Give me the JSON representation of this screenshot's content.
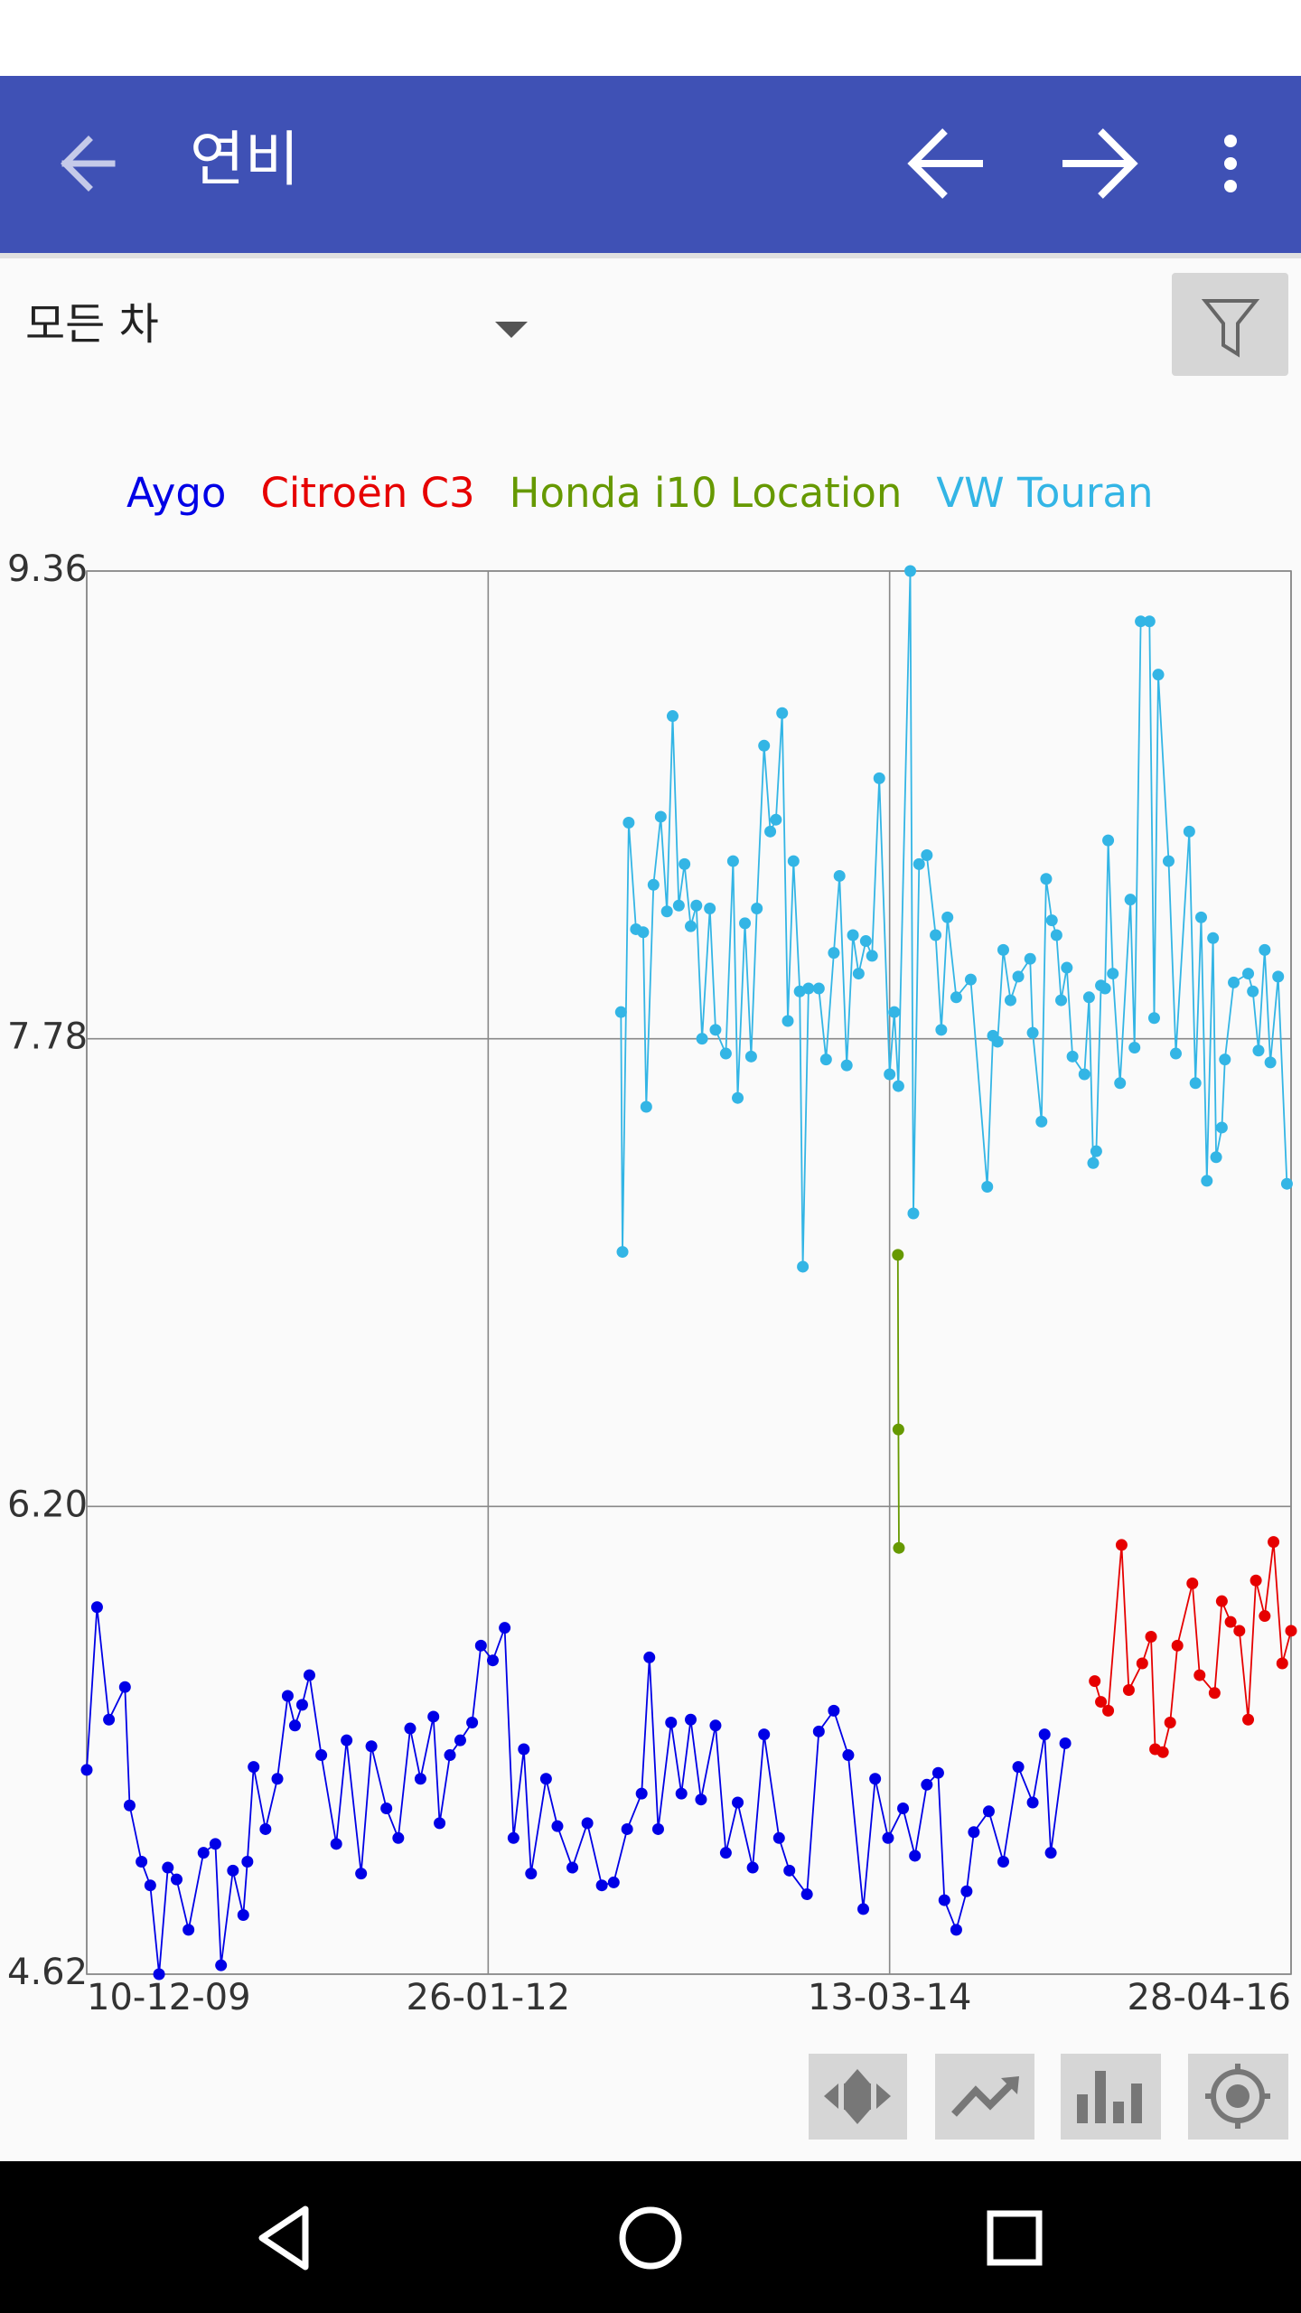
{
  "app_bar": {
    "title": "연비"
  },
  "filter": {
    "selected": "모든 차"
  },
  "chart_data": {
    "type": "line",
    "markers": true,
    "grid": true,
    "xlim": [
      "10-12-09",
      "28-04-16"
    ],
    "xticks": [
      "10-12-09",
      "26-01-12",
      "13-03-14",
      "28-04-16"
    ],
    "ylim": [
      4.62,
      9.36
    ],
    "yticks": [
      4.62,
      {
        "value": 6.2,
        "label": "6.20"
      },
      7.78,
      9.36
    ],
    "series": [
      {
        "name": "Aygo",
        "color": "#0000e6",
        "x": [
          "10-12-09",
          "30-12-09",
          "22-01-10",
          "22-02-10",
          "03-03-10",
          "26-03-10",
          "12-04-10",
          "29-04-10",
          "16-05-10",
          "02-06-10",
          "25-06-10",
          "24-07-10",
          "16-08-10",
          "27-08-10",
          "19-09-10",
          "09-10-10",
          "17-10-10",
          "29-10-10",
          "21-11-10",
          "14-12-10",
          "03-01-11",
          "17-01-11",
          "31-01-11",
          "14-02-11",
          "09-03-11",
          "07-04-11",
          "27-04-11",
          "25-05-11",
          "14-06-11",
          "13-07-11",
          "05-08-11",
          "28-08-11",
          "17-09-11",
          "12-10-11",
          "24-10-11",
          "13-11-11",
          "03-12-11",
          "26-12-11",
          "12-01-12",
          "04-02-12",
          "27-02-12",
          "15-03-12",
          "04-04-12",
          "18-04-12",
          "17-05-12",
          "08-06-12",
          "07-07-12",
          "05-08-12",
          "02-09-12",
          "25-09-12",
          "21-10-12",
          "18-11-12",
          "03-12-12",
          "20-12-12",
          "14-01-13",
          "03-02-13",
          "21-02-13",
          "13-03-13",
          "10-04-13",
          "30-04-13",
          "23-05-13",
          "21-06-13",
          "13-07-13",
          "11-08-13",
          "31-08-13",
          "04-10-13",
          "27-10-13",
          "25-11-13",
          "23-12-13",
          "21-01-14",
          "13-02-14",
          "10-03-14",
          "08-04-14",
          "01-05-14",
          "24-05-14",
          "15-06-14",
          "27-06-14",
          "20-07-14",
          "09-08-14",
          "23-08-14",
          "21-09-14",
          "19-10-14",
          "17-11-14",
          "15-12-14",
          "07-01-15",
          "19-01-15",
          "16-02-15"
        ],
        "values": [
          5.31,
          5.86,
          5.48,
          5.59,
          5.19,
          5.0,
          4.92,
          4.62,
          4.98,
          4.94,
          4.77,
          5.03,
          5.06,
          4.65,
          4.97,
          4.82,
          5.0,
          5.32,
          5.11,
          5.28,
          5.56,
          5.46,
          5.53,
          5.63,
          5.36,
          5.06,
          5.41,
          4.96,
          5.39,
          5.18,
          5.08,
          5.45,
          5.28,
          5.49,
          5.13,
          5.36,
          5.41,
          5.47,
          5.73,
          5.68,
          5.79,
          5.08,
          5.38,
          4.96,
          5.28,
          5.12,
          4.98,
          5.13,
          4.92,
          4.93,
          5.11,
          5.23,
          5.69,
          5.11,
          5.47,
          5.23,
          5.48,
          5.21,
          5.46,
          5.03,
          5.2,
          4.98,
          5.43,
          5.08,
          4.97,
          4.89,
          5.44,
          5.51,
          5.36,
          4.84,
          5.28,
          5.08,
          5.18,
          5.02,
          5.26,
          5.3,
          4.87,
          4.77,
          4.9,
          5.1,
          5.17,
          5.0,
          5.32,
          5.2,
          5.43,
          5.03,
          5.4
        ]
      },
      {
        "name": "Citroën C3",
        "color": "#e60000",
        "x": [
          "14-04-15",
          "26-04-15",
          "10-05-15",
          "05-06-15",
          "19-06-15",
          "15-07-15",
          "01-08-15",
          "09-08-15",
          "24-08-15",
          "07-09-15",
          "21-09-15",
          "20-10-15",
          "03-11-15",
          "02-12-15",
          "16-12-15",
          "02-01-16",
          "19-01-16",
          "05-02-16",
          "20-02-16",
          "08-03-16",
          "25-03-16",
          "11-04-16",
          "28-04-16"
        ],
        "values": [
          5.61,
          5.54,
          5.51,
          6.07,
          5.58,
          5.67,
          5.76,
          5.38,
          5.37,
          5.47,
          5.73,
          5.94,
          5.63,
          5.57,
          5.88,
          5.81,
          5.78,
          5.48,
          5.95,
          5.83,
          6.08,
          5.67,
          5.78
        ]
      },
      {
        "name": "Honda i10 Location",
        "color": "#669900",
        "x": [
          "29-03-14",
          "30-03-14",
          "31-03-14"
        ],
        "values": [
          7.05,
          6.46,
          6.06
        ]
      },
      {
        "name": "VW Touran",
        "color": "#33b5e5",
        "x": [
          "09-10-12",
          "12-10-12",
          "24-10-12",
          "07-11-12",
          "21-11-12",
          "27-11-12",
          "11-12-12",
          "25-12-12",
          "06-01-13",
          "17-01-13",
          "29-01-13",
          "09-02-13",
          "21-02-13",
          "04-03-13",
          "15-03-13",
          "30-03-13",
          "10-04-13",
          "30-04-13",
          "14-05-13",
          "23-05-13",
          "06-06-13",
          "18-06-13",
          "29-06-13",
          "13-07-13",
          "25-07-13",
          "05-08-13",
          "17-08-13",
          "28-08-13",
          "08-09-13",
          "20-09-13",
          "26-09-13",
          "07-10-13",
          "27-10-13",
          "10-11-13",
          "25-11-13",
          "06-12-13",
          "20-12-13",
          "01-01-14",
          "12-01-14",
          "26-01-14",
          "07-02-14",
          "21-02-14",
          "13-03-14",
          "22-03-14",
          "30-03-14",
          "22-04-14",
          "28-04-14",
          "09-05-14",
          "24-05-14",
          "10-06-14",
          "21-06-14",
          "03-07-14",
          "20-07-14",
          "17-08-14",
          "18-09-14",
          "29-09-14",
          "08-10-14",
          "19-10-14",
          "02-11-14",
          "17-11-14",
          "10-12-14",
          "15-12-14",
          "01-01-15",
          "10-01-15",
          "21-01-15",
          "30-01-15",
          "08-02-15",
          "19-02-15",
          "02-03-15",
          "25-03-15",
          "03-04-15",
          "11-04-15",
          "17-04-15",
          "26-04-15",
          "04-05-15",
          "10-05-15",
          "19-05-15",
          "02-06-15",
          "22-06-15",
          "30-06-15",
          "12-07-15",
          "29-07-15",
          "07-08-15",
          "15-08-15",
          "04-09-15",
          "18-09-15",
          "14-10-15",
          "26-10-15",
          "06-11-15",
          "17-11-15",
          "29-11-15",
          "05-12-15",
          "16-12-15",
          "22-12-15",
          "08-01-16",
          "05-02-16",
          "14-02-16",
          "25-02-16",
          "08-03-16",
          "19-03-16",
          "03-04-16",
          "20-04-16"
        ],
        "values": [
          7.87,
          7.06,
          8.51,
          8.15,
          8.14,
          7.55,
          8.3,
          8.53,
          8.21,
          8.87,
          8.23,
          8.37,
          8.16,
          8.23,
          7.78,
          8.22,
          7.81,
          7.73,
          8.38,
          7.58,
          8.17,
          7.72,
          8.22,
          8.77,
          8.48,
          8.52,
          8.88,
          7.84,
          8.38,
          7.94,
          7.01,
          7.95,
          7.95,
          7.71,
          8.07,
          8.33,
          7.69,
          8.13,
          8.0,
          8.11,
          8.06,
          8.66,
          7.66,
          7.87,
          7.62,
          9.36,
          7.19,
          8.37,
          8.4,
          8.13,
          7.81,
          8.19,
          7.92,
          7.98,
          7.28,
          7.79,
          7.77,
          8.08,
          7.91,
          7.99,
          8.05,
          7.8,
          7.5,
          8.32,
          8.18,
          8.13,
          7.91,
          8.02,
          7.72,
          7.66,
          7.92,
          7.36,
          7.4,
          7.96,
          7.95,
          8.45,
          8.0,
          7.63,
          8.25,
          7.75,
          9.19,
          9.19,
          7.85,
          9.01,
          8.38,
          7.73,
          8.48,
          7.63,
          8.19,
          7.3,
          8.12,
          7.38,
          7.48,
          7.71,
          7.97,
          8.0,
          7.94,
          7.74,
          8.08,
          7.7,
          7.99,
          7.29
        ]
      }
    ]
  }
}
